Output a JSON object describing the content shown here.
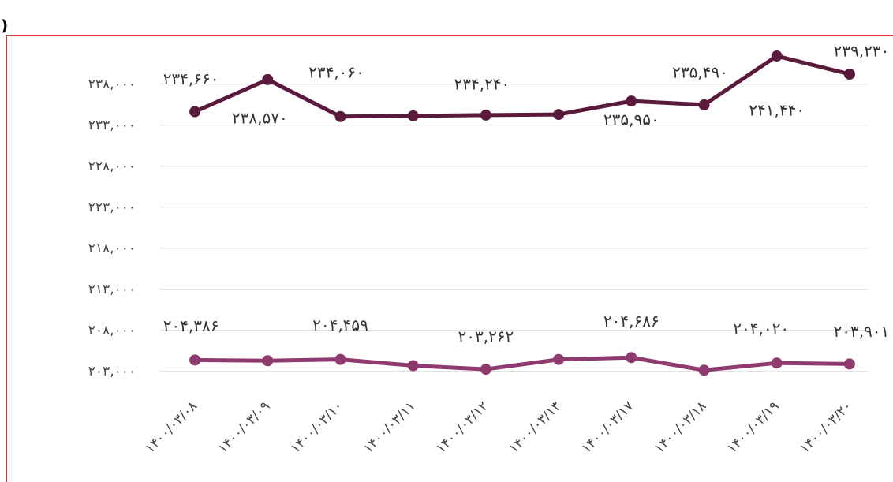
{
  "chart_data": {
    "type": "line",
    "unit_label": "(ریال)",
    "categories": [
      "۱۴۰۰/۰۳/۰۸",
      "۱۴۰۰/۰۳/۰۹",
      "۱۴۰۰/۰۳/۱۰",
      "۱۴۰۰/۰۳/۱۱",
      "۱۴۰۰/۰۳/۱۲",
      "۱۴۰۰/۰۳/۱۳",
      "۱۴۰۰/۰۳/۱۷",
      "۱۴۰۰/۰۳/۱۸",
      "۱۴۰۰/۰۳/۱۹",
      "۱۴۰۰/۰۳/۲۰"
    ],
    "series": [
      {
        "color": "#5a1a3c",
        "values": [
          234660,
          238570,
          234060,
          234150,
          234240,
          234320,
          235950,
          235490,
          241440,
          239230
        ],
        "value_labels": [
          "۲۳۴,۶۶۰",
          "۲۳۸,۵۷۰",
          "۲۳۴,۰۶۰",
          null,
          "۲۳۴,۲۴۰",
          null,
          "۲۳۵,۹۵۰",
          "۲۳۵,۴۹۰",
          "۲۴۱,۴۴۰",
          "۲۳۹,۲۳۰"
        ]
      },
      {
        "color": "#8e3a6e",
        "values": [
          204386,
          204300,
          204459,
          203700,
          203262,
          204450,
          204686,
          203150,
          204020,
          203901
        ],
        "value_labels": [
          "۲۰۴,۳۸۶",
          null,
          "۲۰۴,۴۵۹",
          null,
          "۲۰۳,۲۶۲",
          null,
          "۲۰۴,۶۸۶",
          null,
          "۲۰۴,۰۲۰",
          "۲۰۳,۹۰۱"
        ]
      }
    ],
    "ylim": [
      200000,
      243000
    ],
    "yticks": [
      {
        "value": 203000,
        "label": "۲۰۳,۰۰۰"
      },
      {
        "value": 208000,
        "label": "۲۰۸,۰۰۰"
      },
      {
        "value": 213000,
        "label": "۲۱۳,۰۰۰"
      },
      {
        "value": 218000,
        "label": "۲۱۸,۰۰۰"
      },
      {
        "value": 223000,
        "label": "۲۲۳,۰۰۰"
      },
      {
        "value": 228000,
        "label": "۲۲۸,۰۰۰"
      },
      {
        "value": 233000,
        "label": "۲۳۳,۰۰۰"
      },
      {
        "value": 238000,
        "label": "۲۳۸,۰۰۰"
      }
    ],
    "grid": true
  }
}
